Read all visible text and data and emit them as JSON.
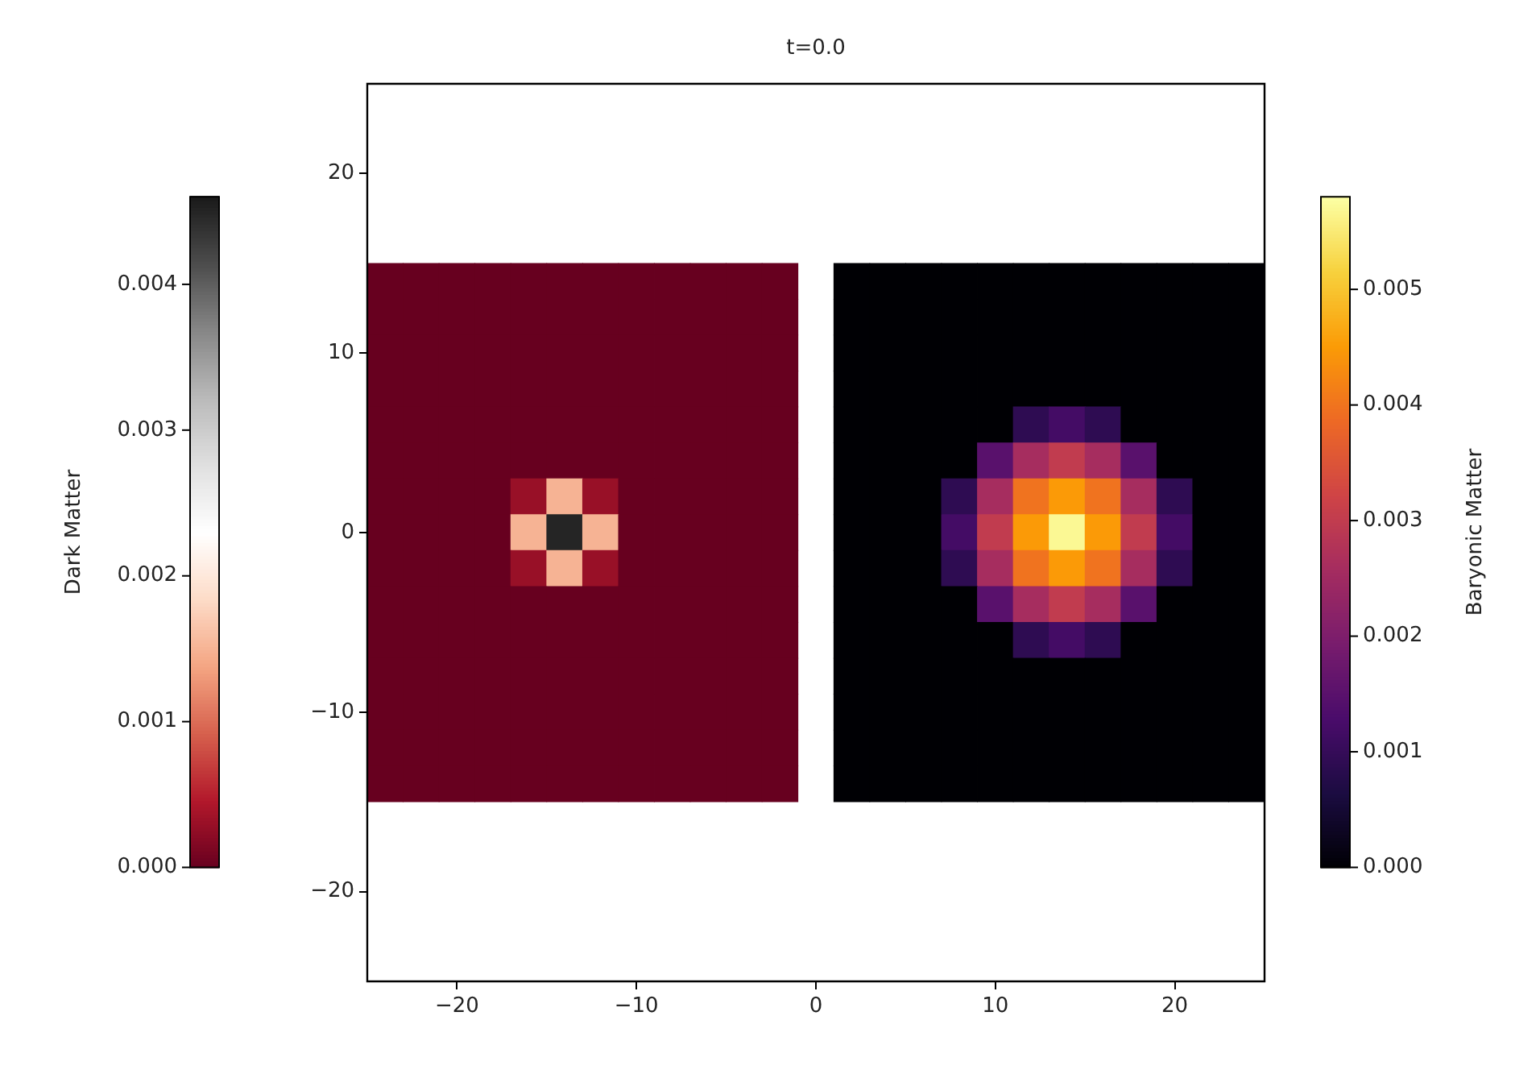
{
  "chart_data": [
    {
      "type": "scatter",
      "title": "t=0.0",
      "marker": "square",
      "clabel": "Dark Matter",
      "clim": [
        0,
        0.0046
      ],
      "cticks": [
        {
          "value": 0,
          "label": "0.000"
        },
        {
          "value": 0.001,
          "label": "0.001"
        },
        {
          "value": 0.002,
          "label": "0.002"
        },
        {
          "value": 0.003,
          "label": "0.003"
        },
        {
          "value": 0.004,
          "label": "0.004"
        }
      ],
      "xlim": [
        -25,
        25
      ],
      "xticks": [
        -20,
        -10,
        0,
        10,
        20
      ],
      "ylim": [
        -25,
        25
      ],
      "yticks": [
        -20,
        -10,
        0,
        10,
        20
      ],
      "x": [
        -24,
        -22,
        -20,
        -18,
        -16,
        -14,
        -12,
        -10,
        -8,
        -6,
        -4,
        -2,
        -24,
        -22,
        -20,
        -18,
        -16,
        -14,
        -12,
        -10,
        -8,
        -6,
        -4,
        -2,
        -24,
        -22,
        -20,
        -18,
        -16,
        -14,
        -12,
        -10,
        -8,
        -6,
        -4,
        -2,
        -24,
        -22,
        -20,
        -18,
        -16,
        -14,
        -12,
        -10,
        -8,
        -6,
        -4,
        -2,
        -24,
        -22,
        -20,
        -18,
        -16,
        -14,
        -12,
        -10,
        -8,
        -6,
        -4,
        -2,
        -24,
        -22,
        -20,
        -18,
        -16,
        -14,
        -12,
        -10,
        -8,
        -6,
        -4,
        -2,
        -24,
        -22,
        -20,
        -18,
        -16,
        -14,
        -12,
        -10,
        -8,
        -6,
        -4,
        -2,
        -24,
        -22,
        -20,
        -18,
        -16,
        -14,
        -12,
        -10,
        -8,
        -6,
        -4,
        -2,
        -24,
        -22,
        -20,
        -18,
        -16,
        -14,
        -12,
        -10,
        -8,
        -6,
        -4,
        -2,
        -24,
        -22,
        -20,
        -18,
        -16,
        -14,
        -12,
        -10,
        -8,
        -6,
        -4,
        -2,
        -24,
        -22,
        -20,
        -18,
        -16,
        -14,
        -12,
        -10,
        -8,
        -6,
        -4,
        -2,
        -24,
        -22,
        -20,
        -18,
        -16,
        -14,
        -12,
        -10,
        -8,
        -6,
        -4,
        -2,
        -24,
        -22,
        -20,
        -18,
        -16,
        -14,
        -12,
        -10,
        -8,
        -6,
        -4,
        -2,
        -24,
        -22,
        -20,
        -18,
        -16,
        -14,
        -12,
        -10,
        -8,
        -6,
        -4,
        -2,
        -24,
        -22,
        -20,
        -18,
        -16,
        -14,
        -12,
        -10,
        -8,
        -6,
        -4,
        -2
      ],
      "values": [
        14,
        14,
        14,
        14,
        14,
        14,
        14,
        14,
        14,
        14,
        14,
        14,
        12,
        12,
        12,
        12,
        12,
        12,
        12,
        12,
        12,
        12,
        12,
        12,
        10,
        10,
        10,
        10,
        10,
        10,
        10,
        10,
        10,
        10,
        10,
        10,
        8,
        8,
        8,
        8,
        8,
        8,
        8,
        8,
        8,
        8,
        8,
        8,
        6,
        6,
        6,
        6,
        6,
        6,
        6,
        6,
        6,
        6,
        6,
        6,
        4,
        4,
        4,
        4,
        4,
        4,
        4,
        4,
        4,
        4,
        4,
        4,
        2,
        2,
        2,
        2,
        2,
        2,
        2,
        2,
        2,
        2,
        2,
        2,
        0,
        0,
        0,
        0,
        0,
        0,
        0,
        0,
        0,
        0,
        0,
        0,
        -2,
        -2,
        -2,
        -2,
        -2,
        -2,
        -2,
        -2,
        -2,
        -2,
        -2,
        -2,
        -4,
        -4,
        -4,
        -4,
        -4,
        -4,
        -4,
        -4,
        -4,
        -4,
        -4,
        -4,
        -6,
        -6,
        -6,
        -6,
        -6,
        -6,
        -6,
        -6,
        -6,
        -6,
        -6,
        -6,
        -8,
        -8,
        -8,
        -8,
        -8,
        -8,
        -8,
        -8,
        -8,
        -8,
        -8,
        -8,
        -10,
        -10,
        -10,
        -10,
        -10,
        -10,
        -10,
        -10,
        -10,
        -10,
        -10,
        -10,
        -12,
        -12,
        -12,
        -12,
        -12,
        -12,
        -12,
        -12,
        -12,
        -12,
        -12,
        -12,
        -14,
        -14,
        -14,
        -14,
        -14,
        -14,
        -14,
        -14,
        -14,
        -14,
        -14,
        -14
      ],
      "cvalues": [
        0,
        0,
        0,
        0,
        0,
        0,
        0,
        0,
        0,
        0,
        0,
        0,
        0,
        0,
        0,
        0,
        0,
        0,
        0,
        0,
        0,
        0,
        0,
        0,
        0,
        0,
        0,
        0,
        0,
        0,
        0,
        0,
        0,
        0,
        0,
        0,
        0,
        0,
        0,
        0,
        0,
        0,
        0,
        0,
        0,
        0,
        0,
        0,
        0,
        0,
        0,
        0,
        0,
        0,
        0,
        0,
        0,
        0,
        0,
        0,
        0,
        0,
        0,
        0,
        0,
        0,
        0,
        0,
        0,
        0,
        0,
        0,
        0,
        0,
        0,
        0,
        0.0003,
        0.0015,
        0.0003,
        0,
        0,
        0,
        0,
        0,
        0,
        0,
        0,
        0,
        0.0015,
        0.0045,
        0.0015,
        0,
        0,
        0,
        0,
        0,
        0,
        0,
        0,
        0,
        0.0003,
        0.0015,
        0.0003,
        0,
        0,
        0,
        0,
        0,
        0,
        0,
        0,
        0,
        0,
        0,
        0,
        0,
        0,
        0,
        0,
        0,
        0,
        0,
        0,
        0,
        0,
        0,
        0,
        0,
        0,
        0,
        0,
        0,
        0,
        0,
        0,
        0,
        0,
        0,
        0,
        0,
        0,
        0,
        0,
        0,
        0,
        0,
        0,
        0,
        0,
        0,
        0,
        0,
        0,
        0,
        0,
        0,
        0,
        0,
        0,
        0,
        0,
        0,
        0,
        0,
        0,
        0,
        0,
        0,
        0,
        0,
        0,
        0,
        0,
        0,
        0,
        0,
        0,
        0,
        0,
        0
      ]
    },
    {
      "type": "scatter",
      "marker": "square",
      "clabel": "Baryonic Matter",
      "clim": [
        0,
        0.0058
      ],
      "tick_labels": false,
      "cticks": [
        {
          "value": 0,
          "label": "0.000"
        },
        {
          "value": 0.001,
          "label": "0.001"
        },
        {
          "value": 0.002,
          "label": "0.002"
        },
        {
          "value": 0.003,
          "label": "0.003"
        },
        {
          "value": 0.004,
          "label": "0.004"
        },
        {
          "value": 0.005,
          "label": "0.005"
        }
      ],
      "xlim": [
        -25,
        25
      ],
      "xticks": [
        -20,
        -10,
        0,
        10,
        20
      ],
      "ylim": [
        -25,
        25
      ],
      "yticks": [
        -20,
        -10,
        0,
        10,
        20
      ],
      "x": [
        2,
        4,
        6,
        8,
        10,
        12,
        14,
        16,
        18,
        20,
        22,
        24,
        2,
        4,
        6,
        8,
        10,
        12,
        14,
        16,
        18,
        20,
        22,
        24,
        2,
        4,
        6,
        8,
        10,
        12,
        14,
        16,
        18,
        20,
        22,
        24,
        2,
        4,
        6,
        8,
        10,
        12,
        14,
        16,
        18,
        20,
        22,
        24,
        2,
        4,
        6,
        8,
        10,
        12,
        14,
        16,
        18,
        20,
        22,
        24,
        2,
        4,
        6,
        8,
        10,
        12,
        14,
        16,
        18,
        20,
        22,
        24,
        2,
        4,
        6,
        8,
        10,
        12,
        14,
        16,
        18,
        20,
        22,
        24,
        2,
        4,
        6,
        8,
        10,
        12,
        14,
        16,
        18,
        20,
        22,
        24,
        2,
        4,
        6,
        8,
        10,
        12,
        14,
        16,
        18,
        20,
        22,
        24,
        2,
        4,
        6,
        8,
        10,
        12,
        14,
        16,
        18,
        20,
        22,
        24,
        2,
        4,
        6,
        8,
        10,
        12,
        14,
        16,
        18,
        20,
        22,
        24,
        2,
        4,
        6,
        8,
        10,
        12,
        14,
        16,
        18,
        20,
        22,
        24,
        2,
        4,
        6,
        8,
        10,
        12,
        14,
        16,
        18,
        20,
        22,
        24,
        2,
        4,
        6,
        8,
        10,
        12,
        14,
        16,
        18,
        20,
        22,
        24,
        2,
        4,
        6,
        8,
        10,
        12,
        14,
        16,
        18,
        20,
        22,
        24
      ],
      "values": [
        14,
        14,
        14,
        14,
        14,
        14,
        14,
        14,
        14,
        14,
        14,
        14,
        12,
        12,
        12,
        12,
        12,
        12,
        12,
        12,
        12,
        12,
        12,
        12,
        10,
        10,
        10,
        10,
        10,
        10,
        10,
        10,
        10,
        10,
        10,
        10,
        8,
        8,
        8,
        8,
        8,
        8,
        8,
        8,
        8,
        8,
        8,
        8,
        6,
        6,
        6,
        6,
        6,
        6,
        6,
        6,
        6,
        6,
        6,
        6,
        4,
        4,
        4,
        4,
        4,
        4,
        4,
        4,
        4,
        4,
        4,
        4,
        2,
        2,
        2,
        2,
        2,
        2,
        2,
        2,
        2,
        2,
        2,
        2,
        0,
        0,
        0,
        0,
        0,
        0,
        0,
        0,
        0,
        0,
        0,
        0,
        -2,
        -2,
        -2,
        -2,
        -2,
        -2,
        -2,
        -2,
        -2,
        -2,
        -2,
        -2,
        -4,
        -4,
        -4,
        -4,
        -4,
        -4,
        -4,
        -4,
        -4,
        -4,
        -4,
        -4,
        -6,
        -6,
        -6,
        -6,
        -6,
        -6,
        -6,
        -6,
        -6,
        -6,
        -6,
        -6,
        -8,
        -8,
        -8,
        -8,
        -8,
        -8,
        -8,
        -8,
        -8,
        -8,
        -8,
        -8,
        -10,
        -10,
        -10,
        -10,
        -10,
        -10,
        -10,
        -10,
        -10,
        -10,
        -10,
        -10,
        -12,
        -12,
        -12,
        -12,
        -12,
        -12,
        -12,
        -12,
        -12,
        -12,
        -12,
        -12,
        -14,
        -14,
        -14,
        -14,
        -14,
        -14,
        -14,
        -14,
        -14,
        -14,
        -14,
        -14
      ],
      "cvalues": [
        0,
        0,
        0,
        0,
        0,
        0,
        0,
        0,
        0,
        0,
        0,
        0,
        0,
        0,
        0,
        0,
        0,
        0,
        0,
        0,
        0,
        0,
        0,
        0,
        0,
        0,
        0,
        0,
        0,
        0,
        0,
        0,
        0,
        0,
        0,
        0,
        0,
        0,
        0,
        0,
        0,
        0,
        0,
        0,
        0,
        0,
        0,
        0,
        0,
        0,
        0,
        0,
        0,
        0.0009,
        0.0012,
        0.0009,
        0,
        0,
        0,
        0,
        0,
        0,
        0,
        0,
        0.0015,
        0.0026,
        0.003,
        0.0026,
        0.0015,
        0,
        0,
        0,
        0,
        0,
        0,
        0.0009,
        0.0026,
        0.004,
        0.0045,
        0.004,
        0.0026,
        0.0009,
        0,
        0,
        0,
        0,
        0,
        0.0012,
        0.003,
        0.0045,
        0.0057,
        0.0045,
        0.003,
        0.0012,
        0,
        0,
        0,
        0,
        0,
        0.0009,
        0.0026,
        0.004,
        0.0045,
        0.004,
        0.0026,
        0.0009,
        0,
        0,
        0,
        0,
        0,
        0,
        0.0015,
        0.0026,
        0.003,
        0.0026,
        0.0015,
        0,
        0,
        0,
        0,
        0,
        0,
        0,
        0,
        0.0009,
        0.0012,
        0.0009,
        0,
        0,
        0,
        0,
        0,
        0,
        0,
        0,
        0,
        0,
        0,
        0,
        0,
        0,
        0,
        0,
        0,
        0,
        0,
        0,
        0,
        0,
        0,
        0,
        0,
        0,
        0,
        0,
        0,
        0,
        0,
        0,
        0,
        0,
        0,
        0,
        0,
        0,
        0,
        0,
        0,
        0,
        0,
        0,
        0,
        0,
        0,
        0,
        0,
        0,
        0,
        0
      ]
    }
  ]
}
